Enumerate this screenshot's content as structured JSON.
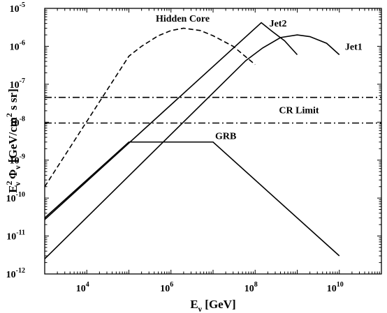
{
  "chart_data": {
    "type": "line",
    "xlabel": {
      "main": "E",
      "sub": "ν",
      "rest": " [GeV]"
    },
    "ylabel": {
      "pre": "E",
      "sup": "2",
      "sub": "ν",
      "mid": " Φ",
      "sub2": "ν",
      "rest1": "  [GeV/cm",
      "sup2": "2",
      "rest2": " s sr]"
    },
    "x_scale": "log",
    "y_scale": "log",
    "xlim": [
      1000,
      100000000000
    ],
    "ylim": [
      1e-12,
      1e-05
    ],
    "x_ticks": [
      {
        "value": 10000,
        "base": "10",
        "exp": "4"
      },
      {
        "value": 1000000,
        "base": "10",
        "exp": "6"
      },
      {
        "value": 100000000,
        "base": "10",
        "exp": "8"
      },
      {
        "value": 10000000000,
        "base": "10",
        "exp": "10"
      }
    ],
    "y_ticks": [
      {
        "value": 1e-12,
        "base": "10",
        "exp": "-12"
      },
      {
        "value": 1e-11,
        "base": "10",
        "exp": "-11"
      },
      {
        "value": 1e-10,
        "base": "10",
        "exp": "-10"
      },
      {
        "value": 1e-09,
        "base": "10",
        "exp": "-9"
      },
      {
        "value": 1e-08,
        "base": "10",
        "exp": "-8"
      },
      {
        "value": 1e-07,
        "base": "10",
        "exp": "-7"
      },
      {
        "value": 1e-06,
        "base": "10",
        "exp": "-6"
      },
      {
        "value": 1e-05,
        "base": "10",
        "exp": "-5"
      }
    ],
    "grid": false,
    "series": [
      {
        "name": "Hidden Core",
        "style": "dashed",
        "points": [
          [
            1000,
            2e-10
          ],
          [
            100000,
            5.5e-07
          ],
          [
            200000,
            1e-06
          ],
          [
            500000,
            1.9e-06
          ],
          [
            1000000,
            2.6e-06
          ],
          [
            2000000,
            3e-06
          ],
          [
            5000000,
            2.6e-06
          ],
          [
            10000000,
            1.9e-06
          ],
          [
            30000000,
            1e-06
          ],
          [
            100000000,
            3.3e-07
          ]
        ]
      },
      {
        "name": "Jet2",
        "style": "solid",
        "points": [
          [
            1000,
            2.7e-11
          ],
          [
            140000000,
            4.2e-06
          ],
          [
            250000000,
            2.5e-06
          ],
          [
            500000000,
            1.4e-06
          ],
          [
            1000000000,
            6e-07
          ]
        ]
      },
      {
        "name": "Jet1",
        "style": "solid",
        "points": [
          [
            1000,
            2.5e-12
          ],
          [
            60000000,
            4.2e-07
          ],
          [
            150000000,
            9e-07
          ],
          [
            400000000,
            1.7e-06
          ],
          [
            1000000000,
            2e-06
          ],
          [
            2000000000,
            1.8e-06
          ],
          [
            5000000000,
            1.2e-06
          ],
          [
            10000000000,
            6e-07
          ]
        ]
      },
      {
        "name": "GRB",
        "style": "solid",
        "points": [
          [
            1000,
            3e-11
          ],
          [
            100000,
            3e-09
          ],
          [
            10000000,
            3e-09
          ],
          [
            10000000000,
            3e-12
          ]
        ]
      },
      {
        "name": "CR Limit",
        "style": "dashdot",
        "points": [
          [
            1000,
            4.5e-08
          ],
          [
            100000000000,
            4.5e-08
          ]
        ]
      },
      {
        "name": "",
        "style": "dashdot",
        "points": [
          [
            1000,
            9.5e-09
          ],
          [
            100000000000,
            9.5e-09
          ]
        ]
      }
    ],
    "annotations": [
      {
        "text": "Hidden Core",
        "x": 1900000,
        "y": 4.5e-06
      },
      {
        "text": "Jet2",
        "x": 350000000,
        "y": 3.3e-06
      },
      {
        "text": "Jet1",
        "x": 22000000000,
        "y": 8e-07
      },
      {
        "text": "CR Limit",
        "x": 1100000000,
        "y": 1.7e-08
      },
      {
        "text": "GRB",
        "x": 20000000,
        "y": 3.6e-09
      }
    ]
  }
}
